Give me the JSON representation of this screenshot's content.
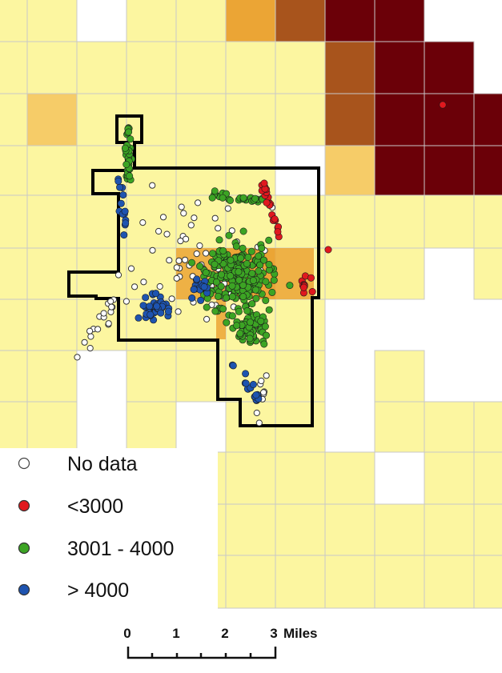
{
  "colors": {
    "background": "#ffffff",
    "grid_line": "#c8c8c8",
    "class_1": "#fcf6a0",
    "class_2": "#f6cc68",
    "class_3": "#eba535",
    "class_4": "#a8541c",
    "class_5": "#6b0008",
    "boundary": "#000000",
    "no_data_fill": "#ffffff",
    "under_3000": "#e0181e",
    "from_3001_to_4000": "#3ca424",
    "over_4000": "#1e54b0"
  },
  "legend": {
    "items": [
      {
        "key": "no_data",
        "label": "No data",
        "color": "#ffffff"
      },
      {
        "key": "under_3000",
        "label": "<3000",
        "color": "#e0181e"
      },
      {
        "key": "mid",
        "label": "3001 - 4000",
        "color": "#3ca424"
      },
      {
        "key": "over_4000",
        "label": "> 4000",
        "color": "#1e54b0"
      }
    ]
  },
  "scale_bar": {
    "ticks": [
      "0",
      "1",
      "2",
      "3"
    ],
    "unit": "Miles"
  }
}
